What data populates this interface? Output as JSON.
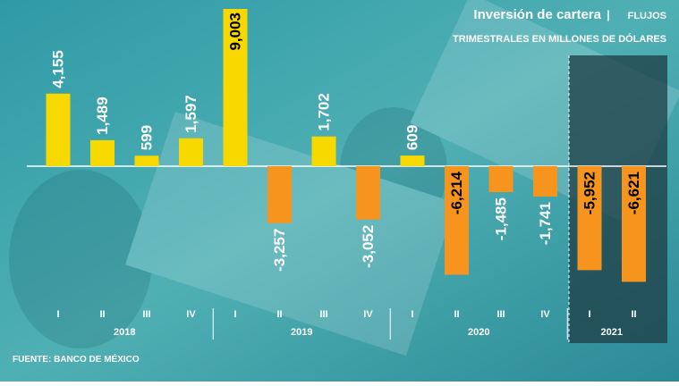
{
  "chart_data": {
    "type": "bar",
    "title": "Inversión de cartera",
    "subtitle_tag": "FLUJOS",
    "subtitle": "TRIMESTRALES EN MILLONES DE DÓLARES",
    "source": "FUENTE: BANCO DE MÉXICO",
    "groups": [
      {
        "name": "2018",
        "categories": [
          "I",
          "II",
          "III",
          "IV"
        ]
      },
      {
        "name": "2019",
        "categories": [
          "I",
          "II",
          "III",
          "IV"
        ]
      },
      {
        "name": "2020",
        "categories": [
          "I",
          "II",
          "III",
          "IV"
        ]
      },
      {
        "name": "2021",
        "categories": [
          "I",
          "II"
        ]
      }
    ],
    "values": [
      4155,
      1489,
      599,
      1597,
      9003,
      -3257,
      1702,
      -3052,
      609,
      -6214,
      -1485,
      -1741,
      -5952,
      -6621
    ],
    "value_labels": [
      "4,155",
      "1,489",
      "599",
      "1,597",
      "9,003",
      "-3,257",
      "1,702",
      "-3,052",
      "609",
      "-6,214",
      "-1,485",
      "-1,741",
      "-5,952",
      "-6,621"
    ],
    "positive_color": "#f7d900",
    "negative_color": "#f7941d"
  }
}
